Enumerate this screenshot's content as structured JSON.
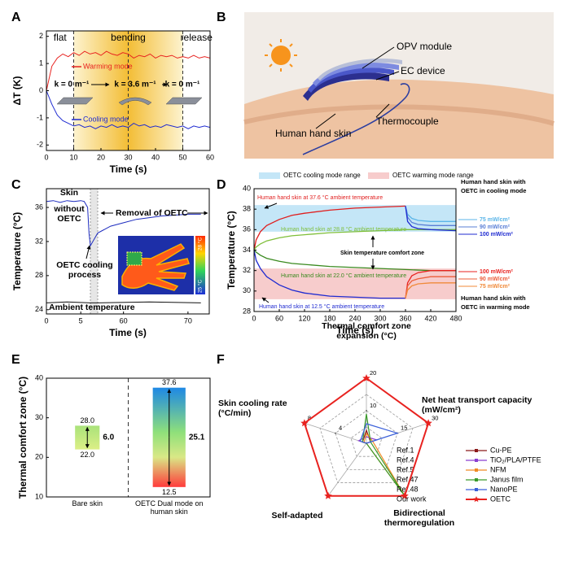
{
  "chart_data": [
    {
      "panel": "A",
      "type": "line",
      "x_label": "Time (s)",
      "y_label": "ΔT (K)",
      "xlim": [
        0,
        60
      ],
      "xticks": [
        0,
        10,
        20,
        30,
        40,
        50,
        60
      ],
      "ylim": [
        -2.2,
        2.2
      ],
      "yticks": [
        -2,
        -1,
        0,
        1,
        2
      ],
      "stages": [
        "flat",
        "bending",
        "release"
      ],
      "stage_bounds": [
        10,
        30,
        50
      ],
      "curvatures": [
        "k = 0 m⁻¹",
        "k = 3.6 m⁻¹",
        "k = 0 m⁻¹"
      ],
      "x": [
        0,
        2,
        4,
        6,
        8,
        10,
        12,
        14,
        16,
        18,
        20,
        22,
        24,
        26,
        28,
        30,
        32,
        34,
        36,
        38,
        40,
        42,
        44,
        46,
        48,
        50,
        52,
        54,
        56,
        58,
        60
      ],
      "series": [
        {
          "name": "Warming mode",
          "color": "#e8221f",
          "values": [
            0,
            0.9,
            1.2,
            1.35,
            1.25,
            1.4,
            1.3,
            1.45,
            1.35,
            1.4,
            1.3,
            1.45,
            1.35,
            1.3,
            1.4,
            1.35,
            1.2,
            1.3,
            1.25,
            1.35,
            1.2,
            1.3,
            1.25,
            1.3,
            1.2,
            1.25,
            1.2,
            1.3,
            1.2,
            1.25,
            1.2
          ]
        },
        {
          "name": "Cooling mode",
          "color": "#1f2bd1",
          "values": [
            0,
            -0.5,
            -0.9,
            -1.1,
            -1.2,
            -1.3,
            -1.25,
            -1.35,
            -1.3,
            -1.4,
            -1.3,
            -1.35,
            -1.25,
            -1.35,
            -1.3,
            -1.35,
            -1.2,
            -1.3,
            -1.25,
            -1.35,
            -1.3,
            -1.35,
            -1.25,
            -1.3,
            -1.35,
            -1.3,
            -1.4,
            -1.3,
            -1.35,
            -1.3,
            -1.35
          ]
        }
      ]
    },
    {
      "panel": "C",
      "type": "line",
      "x_label": "Time (s)",
      "y_label": "Temperature (°C)",
      "xlim": [
        0,
        73.3
      ],
      "x_break": [
        6.4,
        56
      ],
      "xticks": [
        0,
        5,
        60,
        70
      ],
      "ylim": [
        23.5,
        38.2
      ],
      "yticks": [
        24,
        28,
        32,
        36
      ],
      "series": [
        {
          "color": "#1c2bbf",
          "x": [
            0,
            1,
            2,
            3,
            4,
            5,
            5.5,
            6,
            6.2,
            6.4,
            56,
            58,
            60,
            62,
            64,
            66,
            68,
            70,
            72
          ],
          "values": [
            36.7,
            36.8,
            36.6,
            36.8,
            36.7,
            36.8,
            36.7,
            36,
            33,
            31.5,
            33,
            33.8,
            34.2,
            34.6,
            34.8,
            35,
            35.1,
            35.2,
            35.2
          ]
        },
        {
          "color": "#111111",
          "x": [
            0,
            3,
            6.4,
            56,
            64,
            72
          ],
          "values": [
            24.8,
            24.9,
            24.8,
            24.8,
            24.9,
            24.8
          ]
        }
      ],
      "annotations": [
        [
          "Skin",
          "without",
          "OETC"
        ],
        [
          "Removal of OETC"
        ],
        [
          "OETC cooling",
          "process"
        ],
        [
          "Ambient temperature"
        ]
      ],
      "colorbar_labels": [
        "28 °C",
        "25 °C"
      ]
    },
    {
      "panel": "D",
      "type": "line",
      "x_label": "Time (s)",
      "y_label": "Temperature (°C)",
      "xlim": [
        0,
        480
      ],
      "xticks": [
        0,
        60,
        120,
        180,
        240,
        300,
        360,
        420,
        480
      ],
      "ylim": [
        28,
        40
      ],
      "yticks": [
        28,
        30,
        32,
        34,
        36,
        38,
        40
      ],
      "bands": [
        {
          "name": "OETC cooling mode range",
          "color": "#c4e6f7",
          "range": [
            35.8,
            38.4
          ]
        },
        {
          "name": "OETC warming mode range",
          "color": "#f7cccc",
          "range": [
            29.2,
            32.2
          ]
        }
      ],
      "series": [
        {
          "name": "Human hand skin at 37.6 °C ambient temperature",
          "color": "#e01e1e",
          "x": [
            0,
            5,
            15,
            30,
            60,
            90,
            120,
            180,
            240,
            300,
            360
          ],
          "values": [
            34,
            35,
            35.8,
            36.4,
            37,
            37.4,
            37.6,
            37.9,
            38.1,
            38.2,
            38.3
          ]
        },
        {
          "name": "Human hand skin at 28.8 °C ambient temperature",
          "color": "#7fbf3a",
          "x": [
            0,
            5,
            15,
            30,
            60,
            90,
            120,
            180,
            240,
            300,
            360,
            420,
            480
          ],
          "values": [
            34,
            34.3,
            34.6,
            34.9,
            35.2,
            35.4,
            35.5,
            35.7,
            35.8,
            35.9,
            36,
            36,
            36
          ]
        },
        {
          "name": "Human hand skin at 22.0 °C ambient temperature",
          "color": "#3a8a1f",
          "x": [
            0,
            5,
            15,
            30,
            60,
            90,
            120,
            180,
            240,
            300,
            360,
            420,
            480
          ],
          "values": [
            34,
            33.8,
            33.5,
            33.2,
            32.9,
            32.7,
            32.6,
            32.4,
            32.3,
            32.2,
            32.1,
            32,
            32
          ]
        },
        {
          "name": "Human hand skin at 12.5 °C ambient temperature",
          "color": "#1f2bd1",
          "x": [
            0,
            5,
            15,
            30,
            60,
            90,
            120,
            180,
            240,
            300,
            360
          ],
          "values": [
            34,
            33,
            32.2,
            31.4,
            30.6,
            30.1,
            29.8,
            29.5,
            29.4,
            29.3,
            29.3
          ]
        },
        {
          "name": "75 mW/cm²",
          "color": "#5bb5e8",
          "x": [
            360,
            365,
            375,
            390,
            420,
            480
          ],
          "values": [
            38.3,
            37.5,
            37.1,
            36.9,
            36.8,
            36.8
          ]
        },
        {
          "name": "90 mW/cm²",
          "color": "#5a7fd6",
          "x": [
            360,
            365,
            375,
            390,
            420,
            480
          ],
          "values": [
            38.3,
            37.2,
            36.7,
            36.5,
            36.4,
            36.4
          ]
        },
        {
          "name": "100 mW/cm²",
          "color": "#1f2bd1",
          "x": [
            360,
            365,
            375,
            390,
            420,
            480
          ],
          "values": [
            38.3,
            36.8,
            36.3,
            36.1,
            36,
            35.9
          ]
        },
        {
          "name": "100 mW/cm²",
          "color": "#e8221f",
          "x": [
            360,
            365,
            375,
            390,
            420,
            480
          ],
          "values": [
            29.3,
            30.8,
            31.5,
            31.8,
            32,
            32
          ]
        },
        {
          "name": "90 mW/cm²",
          "color": "#ec5d3a",
          "x": [
            360,
            365,
            375,
            390,
            420,
            480
          ],
          "values": [
            29.3,
            30.5,
            31,
            31.2,
            31.4,
            31.4
          ]
        },
        {
          "name": "75 mW/cm²",
          "color": "#f08a3a",
          "x": [
            360,
            365,
            375,
            390,
            420,
            480
          ],
          "values": [
            29.3,
            30.1,
            30.5,
            30.7,
            30.8,
            30.8
          ]
        }
      ],
      "annotations": [
        [
          "Skin temperature comfort zone"
        ],
        [
          "Human hand skin with",
          "OETC in cooling mode"
        ],
        [
          "Human hand skin with",
          "OETC in warming mode"
        ]
      ]
    },
    {
      "panel": "E",
      "type": "range_bar",
      "y_label": "Thermal comfort zone (°C)",
      "ylim": [
        10,
        40
      ],
      "yticks": [
        10,
        20,
        30,
        40
      ],
      "categories": [
        "Bare skin",
        "OETC Dual mode on human skin"
      ],
      "low": {
        "values": [
          22,
          12.5
        ],
        "value_labels": [
          "22.0",
          "12.5"
        ]
      },
      "high": {
        "values": [
          28,
          37.6
        ],
        "value_labels": [
          "28.0",
          "37.6"
        ]
      },
      "span": {
        "values": [
          6,
          25.1
        ],
        "value_labels": [
          "6.0",
          "25.1"
        ]
      }
    },
    {
      "panel": "F",
      "type": "radar",
      "axes": [
        {
          "label": "Thermal comfort zone expansion (°C)",
          "lim": [
            0,
            20
          ],
          "ticks": [
            10,
            20
          ]
        },
        {
          "label": "Net heat transport capacity (mW/cm²)",
          "lim": [
            0,
            30
          ],
          "ticks": [
            15,
            30
          ]
        },
        {
          "label": "Bidirectional thermoregulation",
          "lim": [
            0,
            1
          ]
        },
        {
          "label": "Self-adapted",
          "lim": [
            0,
            1
          ]
        },
        {
          "label": "Skin cooling rate (°C/min)",
          "lim": [
            0,
            8
          ],
          "ticks": [
            4,
            8
          ]
        }
      ],
      "series": [
        {
          "ref": "Ref.1",
          "name": "Cu-PE",
          "color": "#8b1a1a",
          "values": [
            4,
            2,
            0,
            0,
            0.5
          ]
        },
        {
          "ref": "Ref.4",
          "name": "TiO₂/PLA/PTFE",
          "color": "#8a3fd1",
          "values": [
            2,
            5,
            0,
            0,
            1
          ]
        },
        {
          "ref": "Ref.5",
          "name": "NFM",
          "color": "#f08a24",
          "values": [
            3,
            3,
            1,
            0,
            0.3
          ]
        },
        {
          "ref": "Ref.47",
          "name": "Janus film",
          "color": "#3a9a2a",
          "values": [
            9,
            2,
            1,
            0,
            0.5
          ]
        },
        {
          "ref": "Ref.48",
          "name": "NanoPE",
          "color": "#3a5fd9",
          "values": [
            6,
            15,
            0,
            0,
            0.8
          ]
        },
        {
          "ref": "Our work",
          "name": "OETC",
          "color": "#e8221f",
          "marker": "star",
          "values": [
            20,
            30,
            1,
            1,
            8
          ]
        }
      ]
    }
  ],
  "illustration": {
    "panel": "B",
    "labels": [
      "OPV module",
      "EC device",
      "Thermocouple",
      "Human hand skin"
    ]
  }
}
